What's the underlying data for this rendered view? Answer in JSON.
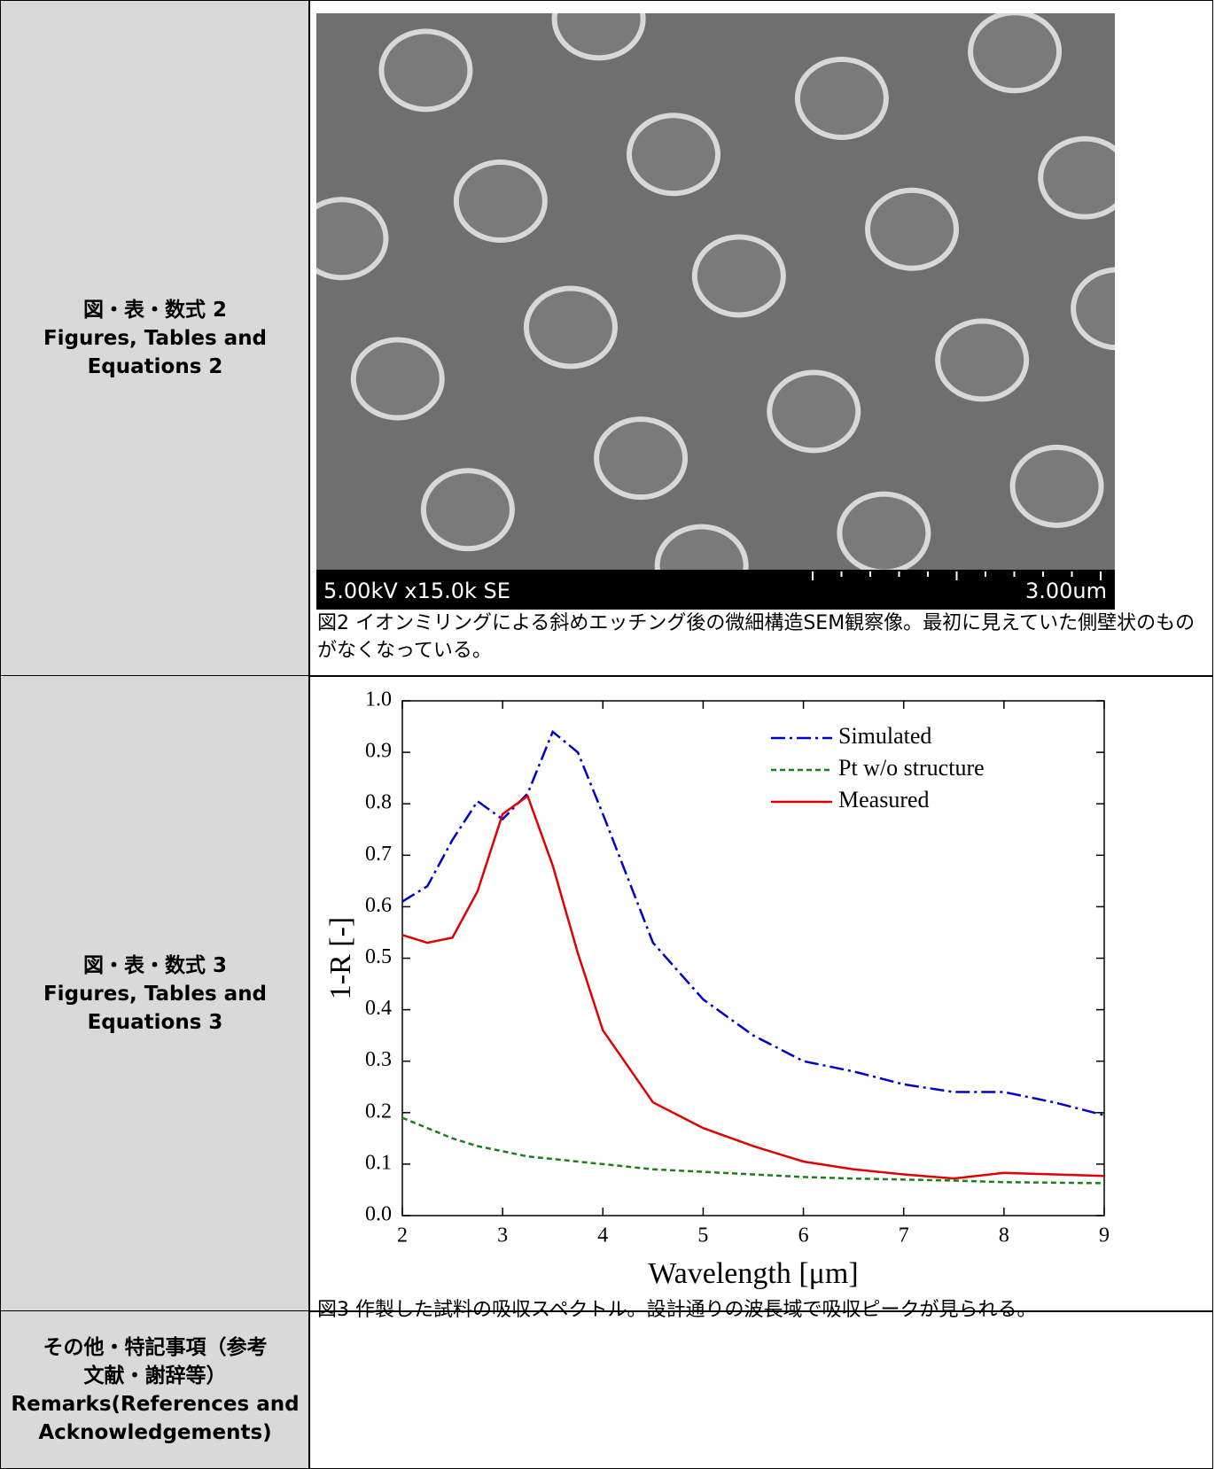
{
  "table": {
    "rows": [
      {
        "label": [
          "図・表・数式 2",
          "Figures, Tables and",
          "Equations 2"
        ],
        "image_text": [
          "5.00kV x15.0k SE",
          "3.00um"
        ],
        "caption": "図2 イオンミリングによる斜めエッチング後の微細構造SEM観察像。最初に見えていた側壁状のものがなくなっている。"
      },
      {
        "label": [
          "図・表・数式 3",
          "Figures, Tables and",
          "Equations 3"
        ],
        "caption": "図3 作製した試料の吸収スペクトル。設計通りの波長域で吸収ピークが見られる。"
      },
      {
        "label": [
          "その他・特記事項（参考",
          "文献・謝辞等）",
          "Remarks(References and",
          "Acknowledgements)"
        ]
      }
    ]
  },
  "chart_data": {
    "type": "line",
    "x_label": "Wavelength [μm]",
    "y_label": "1-R [-]",
    "x": [
      2,
      2.25,
      2.5,
      2.75,
      3,
      3.25,
      3.5,
      3.75,
      4,
      4.5,
      5,
      5.5,
      6,
      6.5,
      7,
      7.5,
      8,
      8.5,
      9
    ],
    "series": [
      {
        "name": "Simulated",
        "color": "#0000cc",
        "values": [
          0.61,
          0.64,
          0.73,
          0.805,
          0.77,
          0.82,
          0.94,
          0.9,
          0.78,
          0.53,
          0.42,
          0.35,
          0.3,
          0.28,
          0.255,
          0.24,
          0.24,
          0.22,
          0.195
        ]
      },
      {
        "name": "Pt w/o structure",
        "color": "#1a7f1a",
        "values": [
          0.19,
          0.17,
          0.15,
          0.135,
          0.125,
          0.115,
          0.11,
          0.105,
          0.1,
          0.09,
          0.085,
          0.08,
          0.075,
          0.072,
          0.07,
          0.068,
          0.065,
          0.064,
          0.063
        ]
      },
      {
        "name": "Measured",
        "color": "#e00000",
        "values": [
          0.545,
          0.53,
          0.54,
          0.63,
          0.78,
          0.815,
          0.68,
          0.51,
          0.36,
          0.22,
          0.17,
          0.135,
          0.105,
          0.09,
          0.08,
          0.072,
          0.083,
          0.08,
          0.077
        ]
      }
    ],
    "xlim": [
      2,
      9
    ],
    "xticks": [
      2,
      3,
      4,
      5,
      6,
      7,
      8,
      9
    ],
    "ylim": [
      0,
      1
    ],
    "yticks": [
      {
        "value": 0,
        "label": "0.0"
      },
      0.1,
      0.2,
      0.3,
      0.4,
      0.5,
      0.6,
      0.7,
      0.8,
      0.9,
      {
        "value": 1,
        "label": "1.0"
      }
    ],
    "legend": "upper-right"
  }
}
